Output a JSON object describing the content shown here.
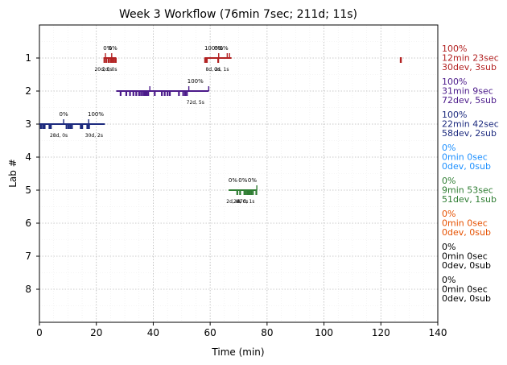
{
  "chart_data": {
    "type": "timeline",
    "title": "Week 3 Workflow (76min 7sec; 211d; 11s)",
    "xlabel": "Time (min)",
    "ylabel": "Lab #",
    "xlim": [
      0,
      140
    ],
    "ylim": [
      9,
      0
    ],
    "x_ticks": [
      0,
      20,
      40,
      60,
      80,
      100,
      120,
      140
    ],
    "y_ticks": [
      1,
      2,
      3,
      4,
      5,
      6,
      7,
      8
    ],
    "grid": true,
    "labs": [
      {
        "lab": 1,
        "color": "#b22222",
        "summary": [
          "100%",
          "12min 23sec",
          "30dev, 3sub"
        ],
        "segments": [
          {
            "start": 22.5,
            "end": 27.0
          },
          {
            "start": 58.0,
            "end": 67.5
          }
        ],
        "ticks_down": [
          22.8,
          23.5,
          24.3,
          25.0,
          25.6,
          26.2,
          26.8,
          58.2,
          58.8,
          62.8
        ],
        "ticks_up": [
          23.2,
          25.4,
          63.0,
          66.0,
          66.8
        ],
        "isolated_marks": [
          127.0
        ],
        "percent_labels": [
          {
            "x": 24.0,
            "text": "0%"
          },
          {
            "x": 25.8,
            "text": "0%"
          },
          {
            "x": 60.8,
            "text": "100%"
          },
          {
            "x": 63.0,
            "text": "0%"
          },
          {
            "x": 64.8,
            "text": "0%"
          }
        ],
        "dev_labels": [
          {
            "x": 22.5,
            "text": "20d, 0s"
          },
          {
            "x": 24.7,
            "text": "2d, 0s"
          },
          {
            "x": 61.0,
            "text": "8d, 2s"
          },
          {
            "x": 64.0,
            "text": "0d, 1s"
          }
        ]
      },
      {
        "lab": 2,
        "color": "#4b1a8a",
        "summary": [
          "100%",
          "31min 9sec",
          "72dev, 5sub"
        ],
        "segments": [
          {
            "start": 27.0,
            "end": 59.5
          }
        ],
        "ticks_down": [
          28.5,
          30.5,
          31.8,
          33.0,
          34.0,
          35.0,
          35.7,
          36.4,
          37.0,
          37.6,
          38.2,
          40.5,
          43.0,
          44.0,
          45.0,
          45.8,
          49.0,
          50.5,
          51.2,
          51.8
        ],
        "ticks_up": [
          38.8,
          52.5,
          59.5
        ],
        "isolated_marks": [],
        "percent_labels": [
          {
            "x": 54.8,
            "text": "100%"
          }
        ],
        "dev_labels": [
          {
            "x": 54.8,
            "text": "72d, 5s"
          }
        ]
      },
      {
        "lab": 3,
        "color": "#1c2a7e",
        "summary": [
          "100%",
          "22min 42sec",
          "58dev, 2sub"
        ],
        "segments": [
          {
            "start": 0.0,
            "end": 23.0
          }
        ],
        "ticks_down": [
          0.5,
          1.2,
          1.8,
          3.5,
          4.0,
          9.5,
          10.2,
          10.8,
          11.4,
          14.5,
          15.0,
          16.8,
          17.4
        ],
        "ticks_up": [
          8.5,
          17.3
        ],
        "isolated_marks": [],
        "percent_labels": [
          {
            "x": 8.5,
            "text": "0%"
          },
          {
            "x": 19.8,
            "text": "100%"
          }
        ],
        "dev_labels": [
          {
            "x": 6.8,
            "text": "28d, 0s"
          },
          {
            "x": 19.2,
            "text": "30d, 2s"
          }
        ]
      },
      {
        "lab": 4,
        "color": "#1e90ff",
        "summary": [
          "0%",
          "0min 0sec",
          "0dev, 0sub"
        ],
        "segments": [],
        "ticks_down": [],
        "ticks_up": [],
        "isolated_marks": [],
        "percent_labels": [],
        "dev_labels": []
      },
      {
        "lab": 5,
        "color": "#2e7d32",
        "summary": [
          "0%",
          "9min 53sec",
          "51dev, 1sub"
        ],
        "segments": [
          {
            "start": 66.5,
            "end": 76.5
          }
        ],
        "ticks_down": [
          69.5,
          70.5,
          72.0,
          72.6,
          73.2,
          73.8,
          74.4,
          75.0,
          76.2
        ],
        "ticks_up": [
          76.4
        ],
        "isolated_marks": [],
        "percent_labels": [
          {
            "x": 68.0,
            "text": "0%"
          },
          {
            "x": 71.5,
            "text": "0%"
          },
          {
            "x": 74.8,
            "text": "0%"
          }
        ],
        "dev_labels": [
          {
            "x": 68.3,
            "text": "2d, 0s"
          },
          {
            "x": 70.8,
            "text": "2d, 0s"
          },
          {
            "x": 72.5,
            "text": "47d, 1s"
          }
        ]
      },
      {
        "lab": 6,
        "color": "#e65100",
        "summary": [
          "0%",
          "0min 0sec",
          "0dev, 0sub"
        ],
        "segments": [],
        "ticks_down": [],
        "ticks_up": [],
        "isolated_marks": [],
        "percent_labels": [],
        "dev_labels": []
      },
      {
        "lab": 7,
        "color": "#000000",
        "summary": [
          "0%",
          "0min 0sec",
          "0dev, 0sub"
        ],
        "segments": [],
        "ticks_down": [],
        "ticks_up": [],
        "isolated_marks": [],
        "percent_labels": [],
        "dev_labels": []
      },
      {
        "lab": 8,
        "color": "#000000",
        "summary": [
          "0%",
          "0min 0sec",
          "0dev, 0sub"
        ],
        "segments": [],
        "ticks_down": [],
        "ticks_up": [],
        "isolated_marks": [],
        "percent_labels": [],
        "dev_labels": []
      }
    ]
  }
}
